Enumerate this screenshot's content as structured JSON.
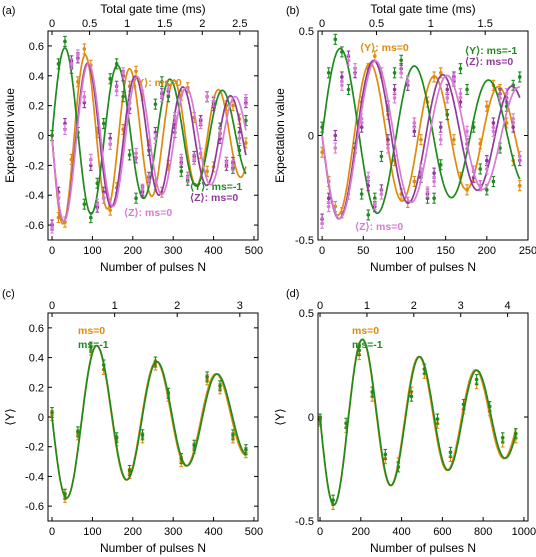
{
  "colors": {
    "orange": "#e08a0b",
    "green": "#1f8a1f",
    "purple": "#8e3a99",
    "pink": "#d97ad6"
  },
  "chart_data": [
    {
      "type": "line",
      "panel_label": "(a)",
      "xlabel": "Number of pulses N",
      "ylabel": "Expectation value",
      "top_xlabel": "Total gate time (ms)",
      "xlim": [
        -10,
        510
      ],
      "ylim": [
        -0.7,
        0.7
      ],
      "xticks": [
        "0",
        "100",
        "200",
        "300",
        "400",
        "500"
      ],
      "yticks": [
        "-0.6",
        "-0.4",
        "-0.2",
        "0",
        "0.2",
        "0.4",
        "0.6"
      ],
      "top_xticks": [
        "0",
        "0.5",
        "1",
        "1.5",
        "2",
        "2.5"
      ],
      "top_tick_positions_N": [
        0,
        93,
        186,
        279,
        372,
        465
      ],
      "series": [
        {
          "name": "⟨Y⟩: ms=0",
          "color": "orange",
          "model": {
            "A": -0.62,
            "decay": 0.0017,
            "period": 110,
            "offset": 0.0
          },
          "x": [
            0,
            16,
            32,
            48,
            64,
            80,
            96,
            112,
            128,
            144,
            160,
            176,
            192,
            208,
            224,
            240,
            256,
            272,
            288,
            304,
            320,
            336,
            352,
            368,
            384,
            400,
            416,
            432,
            448,
            464,
            480
          ],
          "y": [
            0.0,
            -0.55,
            -0.58,
            -0.16,
            0.36,
            0.58,
            0.47,
            0.02,
            -0.42,
            -0.5,
            -0.35,
            0.04,
            0.33,
            0.43,
            0.27,
            -0.06,
            -0.33,
            -0.38,
            -0.2,
            0.1,
            0.27,
            0.32,
            0.12,
            -0.12,
            -0.24,
            -0.21,
            0.01,
            0.2,
            0.2,
            0.11,
            -0.05
          ]
        },
        {
          "name": "⟨Y⟩: ms=-1",
          "color": "green",
          "model": {
            "A": 0.62,
            "decay": 0.0017,
            "period": 130,
            "offset": 0.0
          },
          "x": [
            0,
            16,
            32,
            48,
            64,
            80,
            96,
            112,
            128,
            144,
            160,
            176,
            192,
            208,
            224,
            240,
            256,
            272,
            288,
            304,
            320,
            336,
            352,
            368,
            384,
            400,
            416,
            432,
            448,
            464,
            480
          ],
          "y": [
            0.0,
            0.48,
            0.63,
            0.45,
            0.02,
            -0.46,
            -0.55,
            -0.32,
            0.08,
            0.38,
            0.48,
            0.26,
            -0.13,
            -0.42,
            -0.37,
            -0.1,
            0.21,
            0.36,
            0.26,
            0.02,
            -0.24,
            -0.3,
            -0.16,
            0.1,
            0.26,
            0.22,
            0.05,
            -0.18,
            -0.22,
            -0.1,
            0.1
          ]
        },
        {
          "name": "⟨Z⟩: ms=0",
          "color": "purple",
          "model": {
            "A": -0.58,
            "decay": 0.0016,
            "period": 118,
            "offset": -0.02
          },
          "x": [
            0,
            16,
            32,
            48,
            64,
            80,
            96,
            112,
            128,
            144,
            160,
            176,
            192,
            208,
            224,
            240,
            256,
            272,
            288,
            304,
            320,
            336,
            352,
            368,
            384,
            400,
            416,
            432,
            448,
            464,
            480
          ],
          "y": [
            -0.6,
            -0.38,
            0.08,
            0.5,
            0.52,
            0.22,
            -0.2,
            -0.48,
            -0.38,
            -0.02,
            0.33,
            0.4,
            0.18,
            -0.15,
            -0.38,
            -0.28,
            0.02,
            0.28,
            0.3,
            0.08,
            -0.18,
            -0.28,
            -0.14,
            0.1,
            0.26,
            0.2,
            -0.02,
            -0.2,
            -0.18,
            0.02,
            0.22
          ]
        },
        {
          "name": "⟨Z⟩: ms=0",
          "color": "pink",
          "model": {
            "A": -0.58,
            "decay": 0.0016,
            "period": 121,
            "offset": -0.02
          },
          "x": [
            0,
            16,
            32,
            48,
            64,
            80,
            96,
            112,
            128,
            144,
            160,
            176,
            192,
            208,
            224,
            240,
            256,
            272,
            288,
            304,
            320,
            336,
            352,
            368,
            384,
            400,
            416,
            432,
            448,
            464,
            480
          ],
          "y": [
            -0.62,
            -0.42,
            0.04,
            0.48,
            0.54,
            0.26,
            -0.16,
            -0.46,
            -0.42,
            -0.06,
            0.3,
            0.42,
            0.22,
            -0.12,
            -0.36,
            -0.3,
            -0.02,
            0.26,
            0.31,
            0.12,
            -0.16,
            -0.28,
            -0.16,
            0.08,
            0.26,
            0.23,
            0.02,
            -0.18,
            -0.2,
            -0.02,
            0.24
          ]
        }
      ],
      "legend_positions": "inline labels: ⟨Y⟩: ms=-1 top-right, ⟨Z⟩ labels lower-right, ⟨Y⟩: ms=0 bottom-center"
    },
    {
      "type": "line",
      "panel_label": "(b)",
      "xlabel": "Number of pulses N",
      "ylabel": "Expectation value",
      "top_xlabel": "Total gate time (ms)",
      "xlim": [
        -5,
        250
      ],
      "ylim": [
        -0.5,
        0.5
      ],
      "xticks": [
        "0",
        "50",
        "100",
        "150",
        "200",
        "250"
      ],
      "yticks": [
        "-0.5",
        "0",
        "0.5"
      ],
      "top_xticks": [
        "0",
        "0.5",
        "1",
        "1.5"
      ],
      "top_tick_positions_N": [
        0,
        66,
        132,
        198
      ],
      "series": [
        {
          "name": "⟨Y⟩: ms=0",
          "color": "orange",
          "model": {
            "A": -0.4,
            "decay": 0.0025,
            "period": 78,
            "offset": 0.0
          },
          "x": [
            0,
            8,
            16,
            24,
            32,
            40,
            48,
            56,
            64,
            72,
            80,
            88,
            96,
            104,
            112,
            120,
            128,
            136,
            144,
            152,
            160,
            168,
            176,
            184,
            192,
            200,
            208,
            216,
            224,
            232,
            240
          ],
          "y": [
            -0.08,
            -0.22,
            -0.34,
            -0.37,
            -0.28,
            -0.06,
            0.16,
            0.32,
            0.38,
            0.3,
            0.1,
            -0.12,
            -0.28,
            -0.32,
            -0.22,
            -0.02,
            0.16,
            0.28,
            0.3,
            0.18,
            -0.02,
            -0.2,
            -0.26,
            -0.2,
            -0.04,
            0.14,
            0.24,
            0.22,
            0.06,
            -0.12,
            -0.24
          ]
        },
        {
          "name": "⟨Y⟩: ms=-1",
          "color": "green",
          "model": {
            "A": 0.44,
            "decay": 0.0025,
            "period": 90,
            "offset": 0.0
          },
          "x": [
            0,
            8,
            16,
            24,
            32,
            40,
            48,
            56,
            64,
            72,
            80,
            88,
            96,
            104,
            112,
            120,
            128,
            136,
            144,
            152,
            160,
            168,
            176,
            184,
            192,
            200,
            208,
            216,
            224,
            232,
            240
          ],
          "y": [
            0.04,
            0.3,
            0.46,
            0.4,
            0.22,
            -0.06,
            -0.28,
            -0.38,
            -0.3,
            -0.1,
            0.14,
            0.3,
            0.36,
            0.26,
            0.06,
            -0.18,
            -0.3,
            -0.3,
            -0.14,
            0.1,
            0.26,
            0.32,
            0.22,
            0.04,
            -0.16,
            -0.26,
            -0.22,
            -0.06,
            0.14,
            0.24,
            0.28
          ]
        },
        {
          "name": "⟨Z⟩: ms=0",
          "color": "purple",
          "model": {
            "A": -0.42,
            "decay": 0.0025,
            "period": 84,
            "offset": 0.0
          },
          "x": [
            0,
            8,
            16,
            24,
            32,
            40,
            48,
            56,
            64,
            72,
            80,
            88,
            96,
            104,
            112,
            120,
            128,
            136,
            144,
            152,
            160,
            168,
            176,
            184,
            192,
            200,
            208,
            216,
            224,
            232,
            240
          ],
          "y": [
            -0.4,
            -0.3,
            0.0,
            0.28,
            0.38,
            0.3,
            0.04,
            -0.24,
            -0.34,
            -0.26,
            -0.02,
            0.22,
            0.32,
            0.24,
            0.02,
            -0.2,
            -0.28,
            -0.18,
            0.04,
            0.22,
            0.28,
            0.16,
            -0.04,
            -0.2,
            -0.24,
            -0.12,
            0.06,
            0.2,
            0.18,
            0.04,
            -0.12
          ]
        },
        {
          "name": "⟨Z⟩: ms=0",
          "color": "pink",
          "model": {
            "A": -0.42,
            "decay": 0.0025,
            "period": 87,
            "offset": 0.0
          },
          "x": [
            0,
            8,
            16,
            24,
            32,
            40,
            48,
            56,
            64,
            72,
            80,
            88,
            96,
            104,
            112,
            120,
            128,
            136,
            144,
            152,
            160,
            168,
            176,
            184,
            192,
            200,
            208,
            216,
            224,
            232,
            240
          ],
          "y": [
            -0.42,
            -0.34,
            -0.06,
            0.24,
            0.36,
            0.32,
            0.08,
            -0.2,
            -0.33,
            -0.28,
            -0.06,
            0.18,
            0.3,
            0.26,
            0.06,
            -0.16,
            -0.27,
            -0.22,
            -0.02,
            0.18,
            0.27,
            0.2,
            0.02,
            -0.17,
            -0.24,
            -0.16,
            0.02,
            0.18,
            0.2,
            0.08,
            -0.1
          ]
        }
      ],
      "legend_positions": "inline labels: ⟨Y⟩: ms=0 top-center, ⟨Z⟩ labels top-right, ⟨Y⟩: ms=-1 bottom-center"
    },
    {
      "type": "line",
      "panel_label": "(c)",
      "xlabel": "Number of pulses N",
      "ylabel": "⟨Y⟩",
      "top_xlabel": "",
      "xlim": [
        -10,
        510
      ],
      "ylim": [
        -0.7,
        0.7
      ],
      "xticks": [
        "0",
        "100",
        "200",
        "300",
        "400",
        "500"
      ],
      "yticks": [
        "-0.6",
        "-0.4",
        "-0.2",
        "0",
        "0.2",
        "0.4",
        "0.6"
      ],
      "top_xticks": [
        "0",
        "1",
        "2",
        "3"
      ],
      "top_tick_positions_N": [
        0,
        155,
        310,
        465
      ],
      "series": [
        {
          "name": "ms=0",
          "color": "orange",
          "model": {
            "A": -0.58,
            "decay": 0.0017,
            "period": 148,
            "offset": 0.0
          },
          "x": [
            0,
            32,
            64,
            96,
            128,
            160,
            192,
            224,
            256,
            288,
            320,
            352,
            384,
            416,
            448,
            480
          ],
          "y": [
            0.01,
            -0.54,
            -0.12,
            0.45,
            0.32,
            -0.16,
            -0.38,
            -0.14,
            0.35,
            0.14,
            -0.3,
            -0.21,
            0.25,
            0.19,
            -0.14,
            -0.24
          ]
        },
        {
          "name": "ms=-1",
          "color": "green",
          "model": {
            "A": -0.58,
            "decay": 0.0017,
            "period": 149,
            "offset": 0.0
          },
          "x": [
            0,
            32,
            64,
            96,
            128,
            160,
            192,
            224,
            256,
            288,
            320,
            352,
            384,
            416,
            448,
            480
          ],
          "y": [
            0.03,
            -0.52,
            -0.1,
            0.47,
            0.35,
            -0.14,
            -0.36,
            -0.12,
            0.37,
            0.16,
            -0.28,
            -0.19,
            0.27,
            0.21,
            -0.12,
            -0.22
          ]
        }
      ],
      "legend_positions": "top-left"
    },
    {
      "type": "line",
      "panel_label": "(d)",
      "xlabel": "Number of pulses N",
      "ylabel": "⟨Y⟩",
      "top_xlabel": "",
      "xlim": [
        -10,
        1020
      ],
      "ylim": [
        -0.5,
        0.5
      ],
      "xticks": [
        "0",
        "200",
        "400",
        "600",
        "800",
        "1000"
      ],
      "yticks": [
        "-0.5",
        "0",
        "0.5"
      ],
      "top_xticks": [
        "0",
        "1",
        "2",
        "3",
        "4"
      ],
      "top_tick_positions_N": [
        0,
        230,
        460,
        690,
        920
      ],
      "series": [
        {
          "name": "ms=0",
          "color": "orange",
          "model": {
            "A": -0.45,
            "decay": 0.0009,
            "period": 278,
            "offset": 0.0
          },
          "x": [
            0,
            64,
            128,
            192,
            256,
            320,
            384,
            448,
            512,
            576,
            640,
            704,
            768,
            832,
            896,
            960
          ],
          "y": [
            -0.02,
            -0.42,
            -0.05,
            0.3,
            0.1,
            -0.2,
            -0.22,
            0.12,
            0.21,
            -0.03,
            -0.19,
            0.04,
            0.16,
            0.03,
            -0.12,
            -0.1
          ]
        },
        {
          "name": "ms=-1",
          "color": "green",
          "model": {
            "A": -0.45,
            "decay": 0.0009,
            "period": 280,
            "offset": 0.0
          },
          "x": [
            0,
            64,
            128,
            192,
            256,
            320,
            384,
            448,
            512,
            576,
            640,
            704,
            768,
            832,
            896,
            960
          ],
          "y": [
            -0.01,
            -0.4,
            -0.03,
            0.32,
            0.12,
            -0.18,
            -0.24,
            0.1,
            0.23,
            -0.01,
            -0.17,
            0.06,
            0.18,
            0.05,
            -0.1,
            -0.08
          ]
        }
      ],
      "legend_positions": "top-left"
    }
  ]
}
